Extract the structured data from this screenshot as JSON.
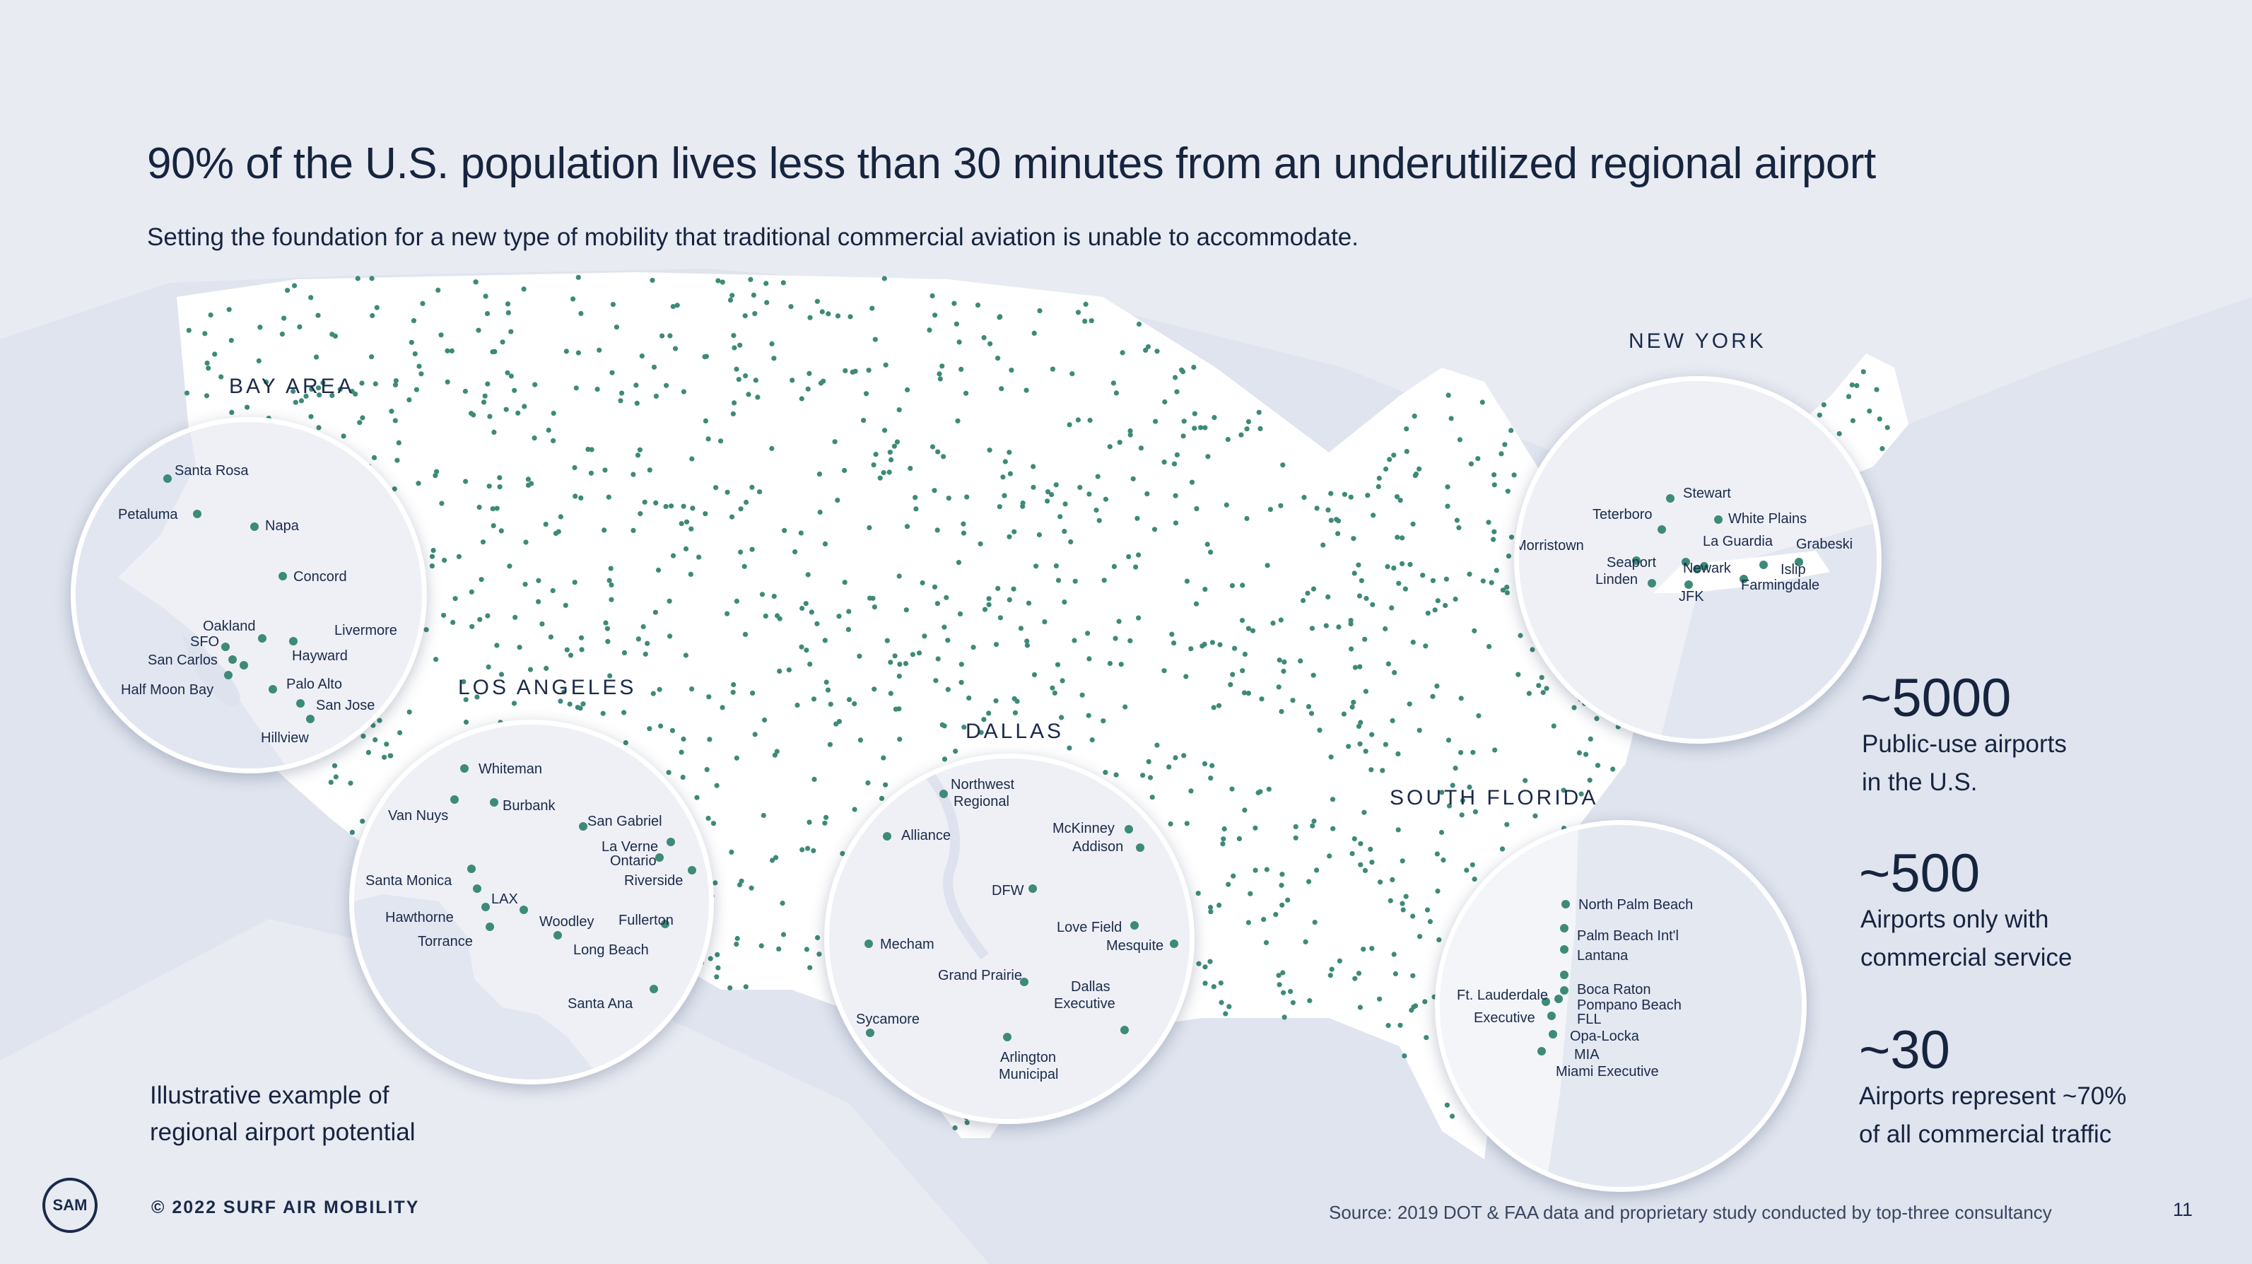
{
  "title": "90% of the U.S. population lives less than 30 minutes from an underutilized regional airport",
  "subtitle": "Setting the foundation for a new type of mobility that traditional commercial aviation is unable to accommodate.",
  "colors": {
    "background": "#dfe4ee",
    "land": "#ffffff",
    "airport_dot": "#3d8a78",
    "text": "#17243f",
    "water_inset": "#e6e9f2"
  },
  "regions": {
    "bay_area": {
      "label": "BAY AREA",
      "places": [
        "Santa Rosa",
        "Petaluma",
        "Napa",
        "Concord",
        "Oakland",
        "SFO",
        "Livermore",
        "San Carlos",
        "Hayward",
        "Half Moon Bay",
        "Palo Alto",
        "San Jose",
        "Hillview"
      ]
    },
    "los_angeles": {
      "label": "LOS ANGELES",
      "places": [
        "Whiteman",
        "Van Nuys",
        "Burbank",
        "San Gabriel",
        "La Verne",
        "Ontario",
        "Riverside",
        "Santa Monica",
        "LAX",
        "Hawthorne",
        "Woodley",
        "Fullerton",
        "Torrance",
        "Long Beach",
        "Santa Ana"
      ]
    },
    "dallas": {
      "label": "DALLAS",
      "places": [
        "Northwest",
        "Regional",
        "Alliance",
        "McKinney",
        "Addison",
        "DFW",
        "Love Field",
        "Mesquite",
        "Mecham",
        "Grand Prairie",
        "Dallas",
        "Executive",
        "Sycamore",
        "Arlington",
        "Municipal"
      ]
    },
    "new_york": {
      "label": "NEW YORK",
      "places": [
        "Stewart",
        "Teterboro",
        "White Plains",
        "Morristown",
        "La Guardia",
        "Grabeski",
        "Seaport",
        "Newark",
        "Linden",
        "Islip",
        "Farmingdale",
        "JFK"
      ]
    },
    "south_florida": {
      "label": "SOUTH FLORIDA",
      "places": [
        "North Palm Beach",
        "Palm Beach Int'l",
        "Lantana",
        "Ft. Lauderdale",
        "Boca Raton",
        "Pompano Beach",
        "Executive",
        "FLL",
        "Opa-Locka",
        "MIA",
        "Miami Executive"
      ]
    }
  },
  "stats": [
    {
      "value": "~5000",
      "line1": "Public-use airports",
      "line2": "in the U.S."
    },
    {
      "value": "~500",
      "line1": "Airports only with",
      "line2": "commercial service"
    },
    {
      "value": "~30",
      "line1": "Airports represent ~70%",
      "line2": "of all commercial traffic"
    }
  ],
  "note": {
    "line1": "Illustrative example of",
    "line2": "regional airport potential"
  },
  "logo_text": "SAM",
  "copyright": "© 2022 SURF AIR MOBILITY",
  "source": "Source: 2019 DOT & FAA data and proprietary study conducted by top-three consultancy",
  "page_number": "11"
}
